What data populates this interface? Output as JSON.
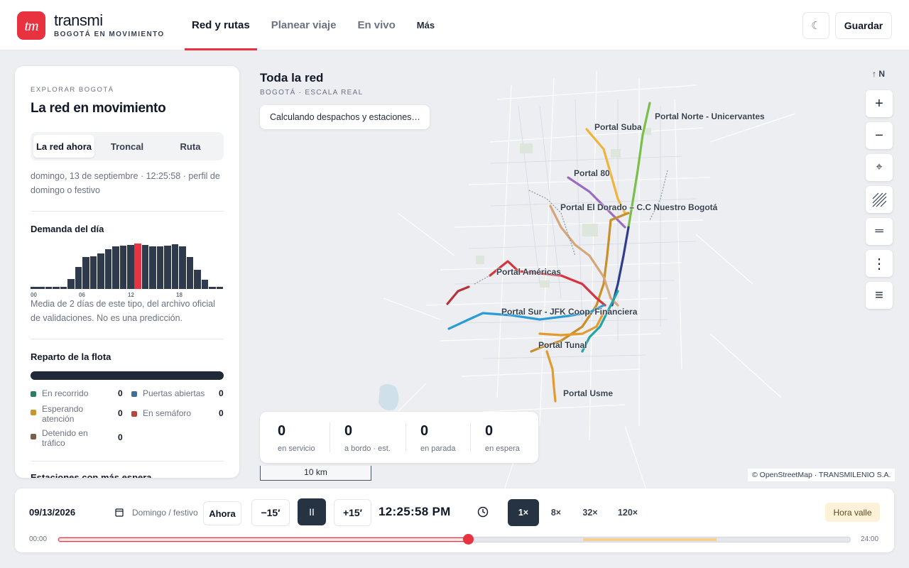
{
  "header": {
    "logo_text": "tm",
    "brand": "transmi",
    "tagline": "BOGOTÁ EN MOVIMIENTO",
    "nav": [
      {
        "label": "Red y rutas",
        "active": true
      },
      {
        "label": "Planear viaje",
        "active": false
      },
      {
        "label": "En vivo",
        "active": false
      },
      {
        "label": "Más",
        "active": false
      }
    ],
    "theme_icon": "☾",
    "save_label": "Guardar"
  },
  "sidebar": {
    "kicker": "EXPLORAR BOGOTÁ",
    "title": "La red en movimiento",
    "tabs": [
      "La red ahora",
      "Troncal",
      "Ruta"
    ],
    "date_text": "domingo, 13 de septiembre · 12:25:58 · perfil de domingo o festivo",
    "demand_title": "Demanda del día",
    "demand_values": [
      0.04,
      0.04,
      0.04,
      0.04,
      0.04,
      0.22,
      0.48,
      0.7,
      0.72,
      0.78,
      0.88,
      0.93,
      0.95,
      0.97,
      1.0,
      0.97,
      0.94,
      0.93,
      0.95,
      0.98,
      0.93,
      0.7,
      0.42,
      0.2,
      0.05,
      0.04
    ],
    "demand_highlight_index": 14,
    "demand_ticks": [
      "00",
      "06",
      "12",
      "18"
    ],
    "demand_note": "Media de 2 días de este tipo, del archivo oficial de validaciones. No es una predicción.",
    "fleet_title": "Reparto de la flota",
    "fleet_legend": [
      {
        "label": "En recorrido",
        "value": "0",
        "color": "#2f7d65"
      },
      {
        "label": "Puertas abiertas",
        "value": "0",
        "color": "#3f6e9c"
      },
      {
        "label": "Esperando atención",
        "value": "0",
        "color": "#c8962c"
      },
      {
        "label": "En semáforo",
        "value": "0",
        "color": "#b5473d"
      },
      {
        "label": "Detenido en tráfico",
        "value": "0",
        "color": "#7d5f47"
      }
    ],
    "next_section": "Estaciones con más espera"
  },
  "map": {
    "title": "Toda la red",
    "subtitle": "BOGOTÁ · ESCALA REAL",
    "toast": "Calculando despachos y estaciones…",
    "north": "↑ N",
    "controls": [
      {
        "name": "zoom-in",
        "glyph": "+"
      },
      {
        "name": "zoom-out",
        "glyph": "−"
      },
      {
        "name": "locate",
        "glyph": "⌖"
      },
      {
        "name": "hatch",
        "glyph": ""
      },
      {
        "name": "lines",
        "glyph": "═"
      },
      {
        "name": "more",
        "glyph": "⋮"
      },
      {
        "name": "list",
        "glyph": "≡"
      }
    ],
    "portals": [
      "Portal Norte - Unicervantes",
      "Portal Suba",
      "Portal 80",
      "Portal El Dorado – C.C Nuestro Bogotá",
      "Portal Américas",
      "Portal Sur - JFK Coop. Financiera",
      "Portal Tunal",
      "Portal Usme"
    ],
    "stats": [
      {
        "value": "0",
        "label": "en servicio"
      },
      {
        "value": "0",
        "label": "a bordo · est."
      },
      {
        "value": "0",
        "label": "en parada"
      },
      {
        "value": "0",
        "label": "en espera"
      }
    ],
    "scale": "10 km",
    "attribution": "© OpenStreetMap · TRANSMILENIO S.A."
  },
  "timebar": {
    "date": "09/13/2026",
    "profile": "Domingo / festivo",
    "now_label": "Ahora",
    "back_label": "−15′",
    "pause_label": "II",
    "fwd_label": "+15′",
    "clock": "12:25:58 PM",
    "speeds": [
      {
        "label": "1×",
        "active": true
      },
      {
        "label": "8×",
        "active": false
      },
      {
        "label": "32×",
        "active": false
      },
      {
        "label": "120×",
        "active": false
      }
    ],
    "badge": "Hora valle",
    "start": "00:00",
    "end": "24:00",
    "progress": 0.5178
  }
}
